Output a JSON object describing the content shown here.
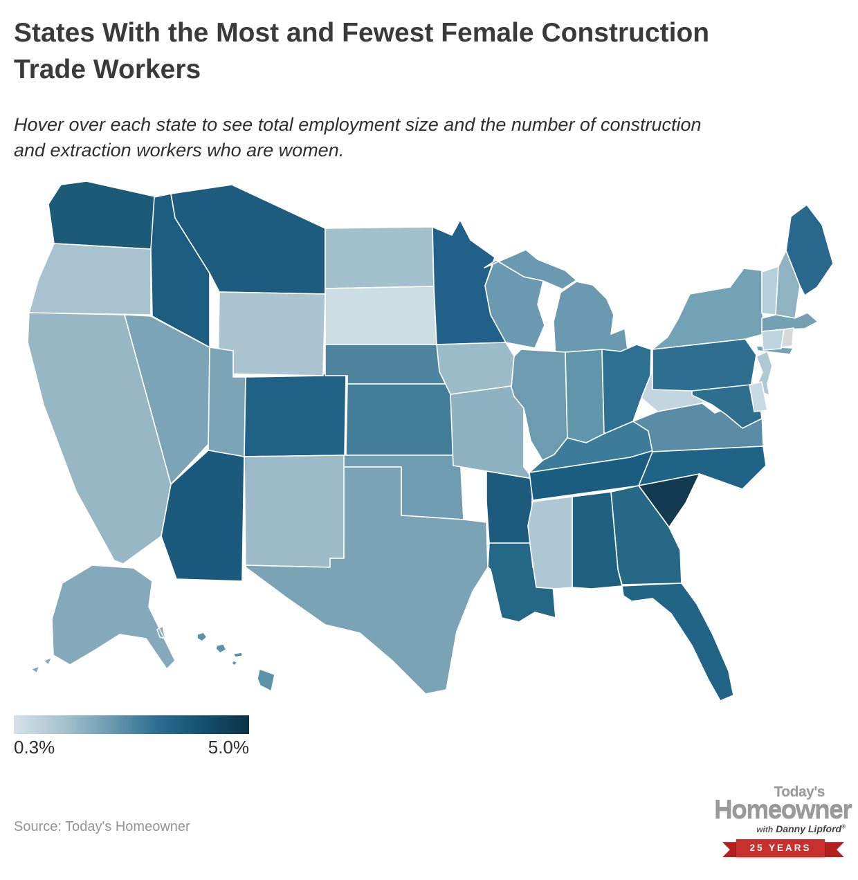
{
  "header": {
    "title_lines": [
      "States With the Most and Fewest Female Construction",
      "Trade Workers"
    ],
    "subtitle_lines": [
      "Hover over each state to see total employment size and the number of construction",
      "and extraction workers who are women."
    ]
  },
  "legend": {
    "min_label": "0.3%",
    "max_label": "5.0%",
    "gradient_stops": [
      "#d6e1e7",
      "#a9c4d0",
      "#6f9db2",
      "#2e6f91",
      "#145071",
      "#0b3344"
    ]
  },
  "source": {
    "text": "Source: Today's Homeowner"
  },
  "logo": {
    "top_word": "Today's",
    "main_word": "Homeowner",
    "tagline_with": "with",
    "tagline_name": "Danny Lipford",
    "registered_mark": "®",
    "banner_text": "25 YEARS",
    "banner_color": "#c8302e",
    "banner_tail_color": "#b5201f"
  },
  "chart_data": {
    "type": "heatmap",
    "subtype": "us-state-choropleth",
    "title": "States With the Most and Fewest Female Construction Trade Workers",
    "scale": {
      "min_label": "0.3%",
      "max_label": "5.0%",
      "min_color": "#d6e1e7",
      "max_color": "#0b3344"
    },
    "legend_position": "bottom-left",
    "states": [
      {
        "id": "AL",
        "name": "Alabama",
        "color": "#1f6080"
      },
      {
        "id": "AK",
        "name": "Alaska",
        "color": "#84a9bb"
      },
      {
        "id": "AZ",
        "name": "Arizona",
        "color": "#1b5a7c"
      },
      {
        "id": "AR",
        "name": "Arkansas",
        "color": "#1c5b7d"
      },
      {
        "id": "CA",
        "name": "California",
        "color": "#97b7c5"
      },
      {
        "id": "CO",
        "name": "Colorado",
        "color": "#1f6285"
      },
      {
        "id": "CT",
        "name": "Connecticut",
        "color": "#bdd3dd"
      },
      {
        "id": "DE",
        "name": "Delaware",
        "color": "#c7dae3"
      },
      {
        "id": "FL",
        "name": "Florida",
        "color": "#216486"
      },
      {
        "id": "GA",
        "name": "Georgia",
        "color": "#266885"
      },
      {
        "id": "HI",
        "name": "Hawaii",
        "color": "#5d92ab"
      },
      {
        "id": "ID",
        "name": "Idaho",
        "color": "#1d5d81"
      },
      {
        "id": "IL",
        "name": "Illinois",
        "color": "#6d9bb0"
      },
      {
        "id": "IN",
        "name": "Indiana",
        "color": "#6095aa"
      },
      {
        "id": "IA",
        "name": "Iowa",
        "color": "#9cbbc9"
      },
      {
        "id": "KS",
        "name": "Kansas",
        "color": "#417c99"
      },
      {
        "id": "KY",
        "name": "Kentucky",
        "color": "#3d7b9a"
      },
      {
        "id": "LA",
        "name": "Louisiana",
        "color": "#246787"
      },
      {
        "id": "ME",
        "name": "Maine",
        "color": "#27688c"
      },
      {
        "id": "MD",
        "name": "Maryland",
        "color": "#2e6f8f"
      },
      {
        "id": "MA",
        "name": "Massachusetts",
        "color": "#74a0b4"
      },
      {
        "id": "MI",
        "name": "Michigan",
        "color": "#6b9ab0"
      },
      {
        "id": "MN",
        "name": "Minnesota",
        "color": "#216089"
      },
      {
        "id": "MS",
        "name": "Mississippi",
        "color": "#aec7d2"
      },
      {
        "id": "MO",
        "name": "Missouri",
        "color": "#8fb2c2"
      },
      {
        "id": "MT",
        "name": "Montana",
        "color": "#1d5c7e"
      },
      {
        "id": "NE",
        "name": "Nebraska",
        "color": "#4e849e"
      },
      {
        "id": "NV",
        "name": "Nevada",
        "color": "#7ba4b6"
      },
      {
        "id": "NH",
        "name": "New Hampshire",
        "color": "#8fb3c3"
      },
      {
        "id": "NJ",
        "name": "New Jersey",
        "color": "#aec8d4"
      },
      {
        "id": "NM",
        "name": "New Mexico",
        "color": "#9dbac8"
      },
      {
        "id": "NY",
        "name": "New York",
        "color": "#74a2b5"
      },
      {
        "id": "NC",
        "name": "North Carolina",
        "color": "#1f6386"
      },
      {
        "id": "ND",
        "name": "North Dakota",
        "color": "#a3c0cd"
      },
      {
        "id": "OH",
        "name": "Ohio",
        "color": "#2e7092"
      },
      {
        "id": "OK",
        "name": "Oklahoma",
        "color": "#6f9cb0"
      },
      {
        "id": "OR",
        "name": "Oregon",
        "color": "#a9c2cf"
      },
      {
        "id": "PA",
        "name": "Pennsylvania",
        "color": "#2e6f91"
      },
      {
        "id": "RI",
        "name": "Rhode Island",
        "color": "#d6d8d9"
      },
      {
        "id": "SC",
        "name": "South Carolina",
        "color": "#123a50"
      },
      {
        "id": "SD",
        "name": "South Dakota",
        "color": "#ccdde4"
      },
      {
        "id": "TN",
        "name": "Tennessee",
        "color": "#1b5d80"
      },
      {
        "id": "TX",
        "name": "Texas",
        "color": "#7aa3b6"
      },
      {
        "id": "UT",
        "name": "Utah",
        "color": "#7ba4b6"
      },
      {
        "id": "VT",
        "name": "Vermont",
        "color": "#b5cfdb"
      },
      {
        "id": "VA",
        "name": "Virginia",
        "color": "#5a8ca6"
      },
      {
        "id": "WA",
        "name": "Washington",
        "color": "#1d5a78"
      },
      {
        "id": "WV",
        "name": "West Virginia",
        "color": "#c3d6e0"
      },
      {
        "id": "WI",
        "name": "Wisconsin",
        "color": "#6b9ab0"
      },
      {
        "id": "WY",
        "name": "Wyoming",
        "color": "#abc4d0"
      }
    ]
  }
}
